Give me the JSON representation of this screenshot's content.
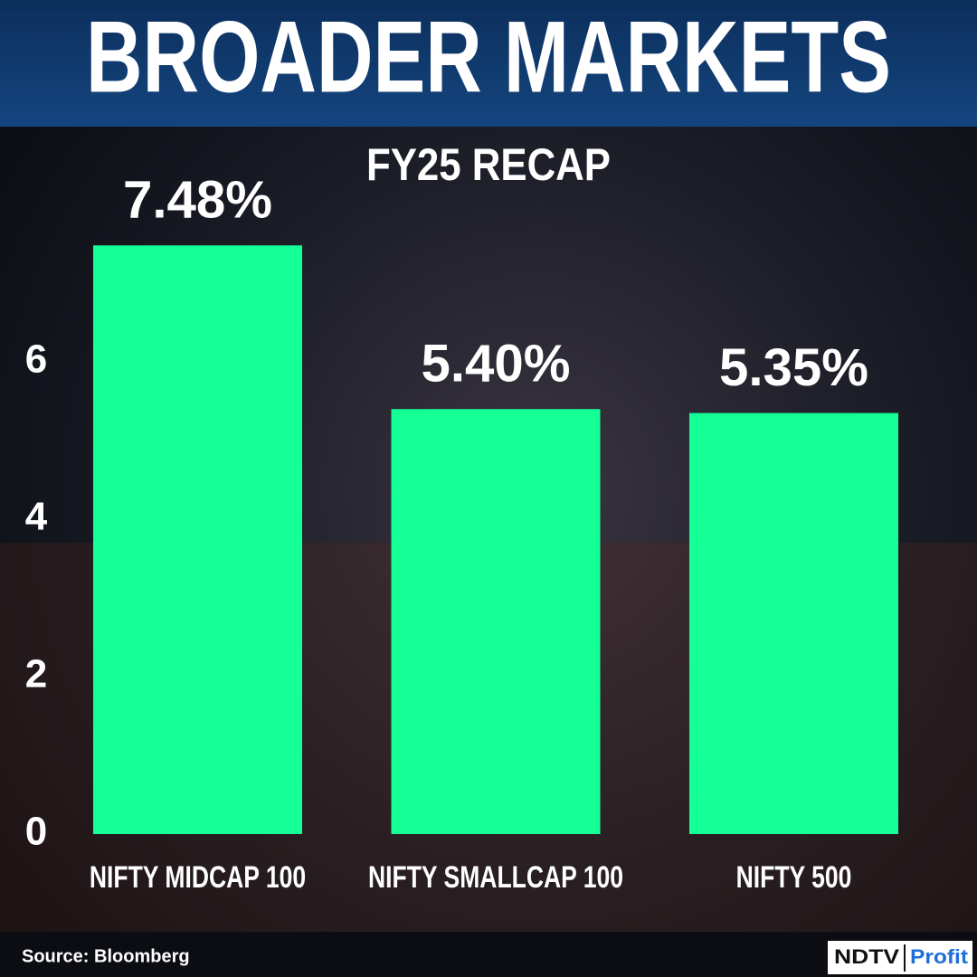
{
  "chart_data": {
    "type": "bar",
    "title": "BROADER MARKETS",
    "subtitle": "FY25 RECAP",
    "categories": [
      "NIFTY MIDCAP 100",
      "NIFTY SMALLCAP 100",
      "NIFTY 500"
    ],
    "values": [
      7.48,
      5.4,
      5.35
    ],
    "value_labels": [
      "7.48%",
      "5.40%",
      "5.35%"
    ],
    "color": "#14ff96",
    "ylim": [
      0,
      8
    ],
    "yticks": [
      0,
      2,
      4,
      6
    ],
    "grid": false,
    "source": "Source: Bloomberg",
    "brand": {
      "name": "NDTV",
      "sub": "Profit"
    }
  }
}
